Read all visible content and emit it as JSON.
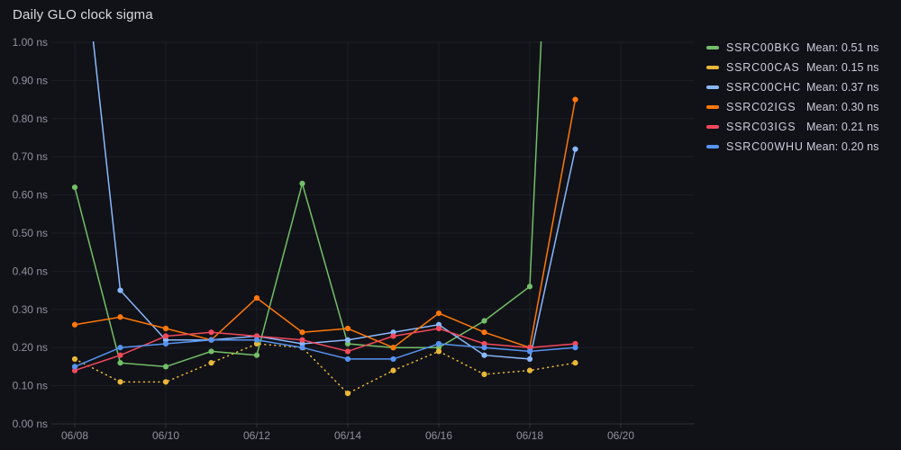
{
  "panel": {
    "title": "Daily GLO clock sigma",
    "background": "#111217",
    "text_color": "#CCCCDC"
  },
  "chart_data": {
    "type": "line",
    "title": "Daily GLO clock sigma",
    "unit": "ns",
    "xlabel": "",
    "ylabel": "",
    "ylim": [
      0.0,
      1.0
    ],
    "y_tick_step": 0.1,
    "grid": true,
    "legend_position": "right-top",
    "x_dates": [
      "06/08",
      "06/09",
      "06/10",
      "06/11",
      "06/12",
      "06/13",
      "06/14",
      "06/15",
      "06/16",
      "06/17",
      "06/18",
      "06/19"
    ],
    "x_axis_tick_labels": [
      "06/08",
      "06/10",
      "06/12",
      "06/14",
      "06/16",
      "06/18",
      "06/20"
    ],
    "y_axis_tick_labels": [
      "0.00 ns",
      "0.10 ns",
      "0.20 ns",
      "0.30 ns",
      "0.40 ns",
      "0.50 ns",
      "0.60 ns",
      "0.70 ns",
      "0.80 ns",
      "0.90 ns",
      "1.00 ns"
    ],
    "clipped_note": "SSRC00CHC first point and SSRC00BKG last point rise above the 1.00 ns axis limit; lines exit the top of the plot",
    "series": [
      {
        "name": "SSRC00BKG",
        "color": "#73BF69",
        "line_style": "solid",
        "mean_label": "Mean: 0.51 ns",
        "values": [
          0.62,
          0.16,
          0.15,
          0.19,
          0.18,
          0.63,
          0.21,
          0.2,
          0.2,
          0.27,
          0.36,
          2.94
        ]
      },
      {
        "name": "SSRC00CAS",
        "color": "#EAB839",
        "line_style": "dotted",
        "mean_label": "Mean: 0.15 ns",
        "values": [
          0.17,
          0.11,
          0.11,
          0.16,
          0.21,
          0.2,
          0.08,
          0.14,
          0.19,
          0.13,
          0.14,
          0.16
        ]
      },
      {
        "name": "SSRC00CHC",
        "color": "#8AB8FF",
        "line_style": "solid",
        "mean_label": "Mean: 0.37 ns",
        "values": [
          1.45,
          0.35,
          0.22,
          0.22,
          0.23,
          0.21,
          0.22,
          0.24,
          0.26,
          0.18,
          0.17,
          0.72
        ]
      },
      {
        "name": "SSRC02IGS",
        "color": "#FF780A",
        "line_style": "solid",
        "mean_label": "Mean: 0.30 ns",
        "values": [
          0.26,
          0.28,
          0.25,
          0.22,
          0.33,
          0.24,
          0.25,
          0.2,
          0.29,
          0.24,
          0.2,
          0.85
        ]
      },
      {
        "name": "SSRC03IGS",
        "color": "#F2495C",
        "line_style": "solid",
        "mean_label": "Mean: 0.21 ns",
        "values": [
          0.14,
          0.18,
          0.23,
          0.24,
          0.23,
          0.22,
          0.19,
          0.23,
          0.25,
          0.21,
          0.2,
          0.21
        ]
      },
      {
        "name": "SSRC00WHU",
        "color": "#5794F2",
        "line_style": "solid",
        "mean_label": "Mean: 0.20 ns",
        "values": [
          0.15,
          0.2,
          0.21,
          0.22,
          0.22,
          0.2,
          0.17,
          0.17,
          0.21,
          0.2,
          0.19,
          0.2
        ]
      }
    ]
  }
}
